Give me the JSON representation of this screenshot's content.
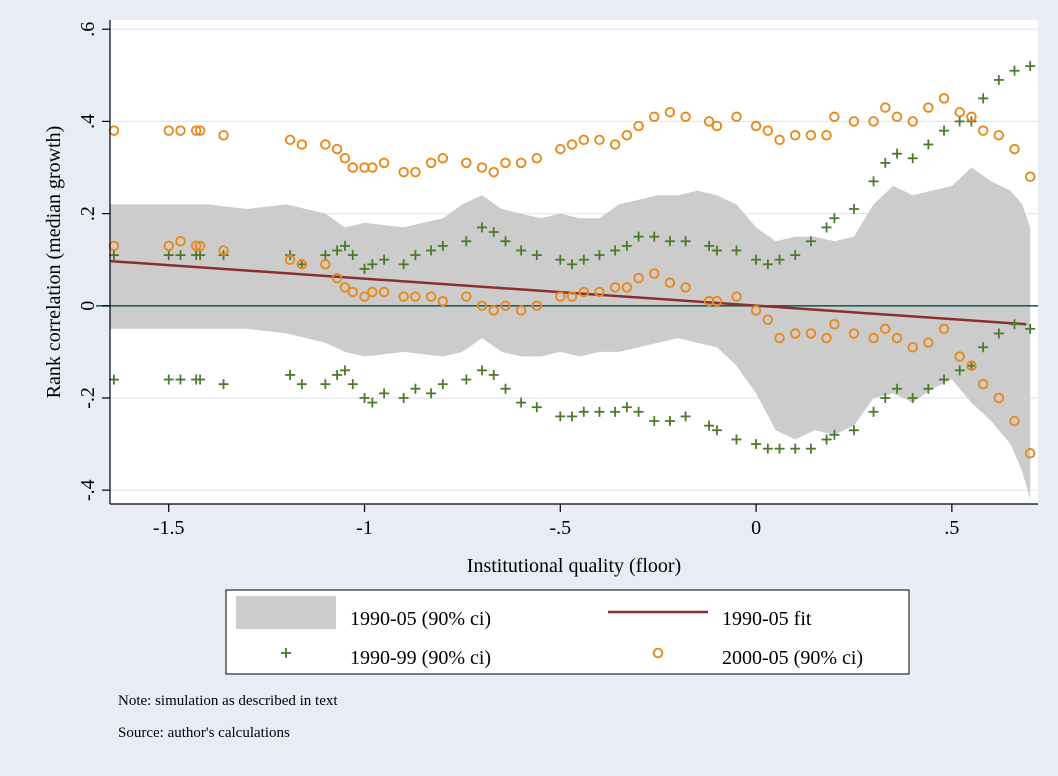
{
  "chart_data": {
    "type": "scatter",
    "title": "",
    "xlabel": "Institutional quality (floor)",
    "ylabel": "Rank correlation (median growth)",
    "xlim": [
      -1.65,
      0.72
    ],
    "ylim": [
      -0.43,
      0.62
    ],
    "xticks": [
      -1.5,
      -1,
      -0.5,
      0,
      0.5
    ],
    "xtick_labels": [
      "-1.5",
      "-1",
      "-.5",
      "0",
      ".5"
    ],
    "yticks": [
      -0.4,
      -0.2,
      0,
      0.2,
      0.4,
      0.6
    ],
    "ytick_labels": [
      "-.4",
      "-.2",
      "0",
      ".2",
      ".4",
      ".6"
    ],
    "grid": "horizontal",
    "zero_line": 0,
    "legend_position": "bottom",
    "series": [
      {
        "name": "1990-05 (90% ci)",
        "kind": "band",
        "color": "#cccccc",
        "x": [
          -1.65,
          -1.5,
          -1.4,
          -1.3,
          -1.2,
          -1.1,
          -1.05,
          -1.0,
          -0.9,
          -0.8,
          -0.75,
          -0.7,
          -0.65,
          -0.6,
          -0.55,
          -0.5,
          -0.45,
          -0.4,
          -0.35,
          -0.3,
          -0.25,
          -0.2,
          -0.15,
          -0.1,
          -0.05,
          0.0,
          0.05,
          0.1,
          0.15,
          0.2,
          0.25,
          0.3,
          0.35,
          0.4,
          0.45,
          0.5,
          0.55,
          0.6,
          0.65,
          0.68,
          0.7
        ],
        "upper": [
          0.22,
          0.22,
          0.22,
          0.21,
          0.22,
          0.2,
          0.17,
          0.18,
          0.17,
          0.19,
          0.22,
          0.24,
          0.21,
          0.2,
          0.19,
          0.2,
          0.19,
          0.19,
          0.22,
          0.23,
          0.24,
          0.24,
          0.25,
          0.24,
          0.22,
          0.17,
          0.14,
          0.15,
          0.15,
          0.14,
          0.15,
          0.22,
          0.26,
          0.24,
          0.25,
          0.26,
          0.3,
          0.27,
          0.25,
          0.22,
          0.17
        ],
        "lower": [
          -0.05,
          -0.05,
          -0.05,
          -0.05,
          -0.06,
          -0.08,
          -0.1,
          -0.11,
          -0.1,
          -0.11,
          -0.1,
          -0.07,
          -0.1,
          -0.11,
          -0.11,
          -0.1,
          -0.11,
          -0.1,
          -0.1,
          -0.09,
          -0.08,
          -0.07,
          -0.08,
          -0.09,
          -0.13,
          -0.19,
          -0.27,
          -0.29,
          -0.27,
          -0.28,
          -0.26,
          -0.2,
          -0.19,
          -0.21,
          -0.18,
          -0.16,
          -0.21,
          -0.25,
          -0.3,
          -0.36,
          -0.42
        ]
      },
      {
        "name": "1990-05 fit",
        "kind": "line",
        "color": "#8b2e2e",
        "x": [
          -1.65,
          0.69
        ],
        "y": [
          0.097,
          -0.04
        ]
      },
      {
        "name": "1990-99 (90% ci)",
        "kind": "plus",
        "color": "#4d7a2a",
        "x": [
          -1.64,
          -1.5,
          -1.47,
          -1.43,
          -1.42,
          -1.36,
          -1.19,
          -1.16,
          -1.1,
          -1.07,
          -1.05,
          -1.03,
          -1.0,
          -0.98,
          -0.95,
          -0.9,
          -0.87,
          -0.83,
          -0.8,
          -0.74,
          -0.7,
          -0.67,
          -0.64,
          -0.6,
          -0.56,
          -0.5,
          -0.47,
          -0.44,
          -0.4,
          -0.36,
          -0.33,
          -0.3,
          -0.26,
          -0.22,
          -0.18,
          -0.12,
          -0.1,
          -0.05,
          0.0,
          0.03,
          0.06,
          0.1,
          0.14,
          0.18,
          0.2,
          0.25,
          0.3,
          0.33,
          0.36,
          0.4,
          0.44,
          0.48,
          0.52,
          0.55,
          0.58,
          0.62,
          0.66,
          0.7
        ],
        "upper": [
          0.11,
          0.11,
          0.11,
          0.11,
          0.11,
          0.11,
          0.11,
          0.09,
          0.11,
          0.12,
          0.13,
          0.11,
          0.08,
          0.09,
          0.1,
          0.09,
          0.11,
          0.12,
          0.13,
          0.14,
          0.17,
          0.16,
          0.14,
          0.12,
          0.11,
          0.1,
          0.09,
          0.1,
          0.11,
          0.12,
          0.13,
          0.15,
          0.15,
          0.14,
          0.14,
          0.13,
          0.12,
          0.12,
          0.1,
          0.09,
          0.1,
          0.11,
          0.14,
          0.17,
          0.19,
          0.21,
          0.27,
          0.31,
          0.33,
          0.32,
          0.35,
          0.38,
          0.4,
          0.4,
          0.45,
          0.49,
          0.51,
          0.52
        ],
        "lower": [
          -0.16,
          -0.16,
          -0.16,
          -0.16,
          -0.16,
          -0.17,
          -0.15,
          -0.17,
          -0.17,
          -0.15,
          -0.14,
          -0.17,
          -0.2,
          -0.21,
          -0.19,
          -0.2,
          -0.18,
          -0.19,
          -0.17,
          -0.16,
          -0.14,
          -0.15,
          -0.18,
          -0.21,
          -0.22,
          -0.24,
          -0.24,
          -0.23,
          -0.23,
          -0.23,
          -0.22,
          -0.23,
          -0.25,
          -0.25,
          -0.24,
          -0.26,
          -0.27,
          -0.29,
          -0.3,
          -0.31,
          -0.31,
          -0.31,
          -0.31,
          -0.29,
          -0.28,
          -0.27,
          -0.23,
          -0.2,
          -0.18,
          -0.2,
          -0.18,
          -0.16,
          -0.14,
          -0.13,
          -0.09,
          -0.06,
          -0.04,
          -0.05
        ]
      },
      {
        "name": "2000-05 (90% ci)",
        "kind": "circle",
        "color": "#e8891c",
        "x": [
          -1.64,
          -1.5,
          -1.47,
          -1.43,
          -1.42,
          -1.36,
          -1.19,
          -1.16,
          -1.1,
          -1.07,
          -1.05,
          -1.03,
          -1.0,
          -0.98,
          -0.95,
          -0.9,
          -0.87,
          -0.83,
          -0.8,
          -0.74,
          -0.7,
          -0.67,
          -0.64,
          -0.6,
          -0.56,
          -0.5,
          -0.47,
          -0.44,
          -0.4,
          -0.36,
          -0.33,
          -0.3,
          -0.26,
          -0.22,
          -0.18,
          -0.12,
          -0.1,
          -0.05,
          0.0,
          0.03,
          0.06,
          0.1,
          0.14,
          0.18,
          0.2,
          0.25,
          0.3,
          0.33,
          0.36,
          0.4,
          0.44,
          0.48,
          0.52,
          0.55,
          0.58,
          0.62,
          0.66,
          0.7
        ],
        "upper": [
          0.38,
          0.38,
          0.38,
          0.38,
          0.38,
          0.37,
          0.36,
          0.35,
          0.35,
          0.34,
          0.32,
          0.3,
          0.3,
          0.3,
          0.31,
          0.29,
          0.29,
          0.31,
          0.32,
          0.31,
          0.3,
          0.29,
          0.31,
          0.31,
          0.32,
          0.34,
          0.35,
          0.36,
          0.36,
          0.35,
          0.37,
          0.39,
          0.41,
          0.42,
          0.41,
          0.4,
          0.39,
          0.41,
          0.39,
          0.38,
          0.36,
          0.37,
          0.37,
          0.37,
          0.41,
          0.4,
          0.4,
          0.43,
          0.41,
          0.4,
          0.43,
          0.45,
          0.42,
          0.41,
          0.38,
          0.37,
          0.34,
          0.28
        ],
        "lower": [
          0.13,
          0.13,
          0.14,
          0.13,
          0.13,
          0.12,
          0.1,
          0.09,
          0.09,
          0.06,
          0.04,
          0.03,
          0.02,
          0.03,
          0.03,
          0.02,
          0.02,
          0.02,
          0.01,
          0.02,
          0.0,
          -0.01,
          0.0,
          -0.01,
          0.0,
          0.02,
          0.02,
          0.03,
          0.03,
          0.04,
          0.04,
          0.06,
          0.07,
          0.05,
          0.04,
          0.01,
          0.01,
          0.02,
          -0.01,
          -0.03,
          -0.07,
          -0.06,
          -0.06,
          -0.07,
          -0.04,
          -0.06,
          -0.07,
          -0.05,
          -0.07,
          -0.09,
          -0.08,
          -0.05,
          -0.11,
          -0.13,
          -0.17,
          -0.2,
          -0.25,
          -0.32
        ]
      }
    ],
    "legend": [
      {
        "label": "1990-05 (90% ci)",
        "symbol": "band"
      },
      {
        "label": "1990-05 fit",
        "symbol": "line"
      },
      {
        "label": "1990-99 (90% ci)",
        "symbol": "plus"
      },
      {
        "label": "2000-05 (90% ci)",
        "symbol": "circle"
      }
    ]
  },
  "notes": {
    "note": "Note: simulation as described in text",
    "source": "Source: author's calculations"
  }
}
